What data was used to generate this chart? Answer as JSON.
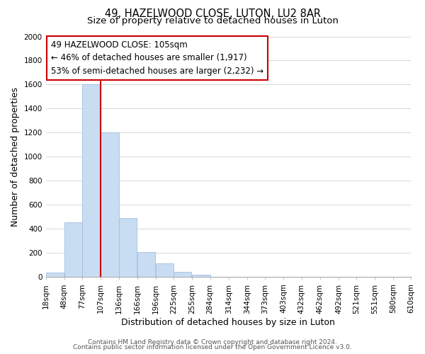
{
  "title": "49, HAZELWOOD CLOSE, LUTON, LU2 8AR",
  "subtitle": "Size of property relative to detached houses in Luton",
  "xlabel": "Distribution of detached houses by size in Luton",
  "ylabel": "Number of detached properties",
  "bar_left_edges": [
    18,
    48,
    77,
    107,
    136,
    166,
    196,
    225,
    255,
    284,
    314,
    344,
    373,
    403,
    432,
    462,
    492,
    521,
    551,
    580
  ],
  "bar_heights": [
    35,
    455,
    1600,
    1200,
    490,
    210,
    115,
    45,
    20,
    5,
    0,
    0,
    0,
    0,
    0,
    0,
    0,
    0,
    0,
    0
  ],
  "bin_width": 29,
  "bar_color": "#c9ddf2",
  "bar_edgecolor": "#a0bfdf",
  "x_tick_labels": [
    "18sqm",
    "48sqm",
    "77sqm",
    "107sqm",
    "136sqm",
    "166sqm",
    "196sqm",
    "225sqm",
    "255sqm",
    "284sqm",
    "314sqm",
    "344sqm",
    "373sqm",
    "403sqm",
    "432sqm",
    "462sqm",
    "492sqm",
    "521sqm",
    "551sqm",
    "580sqm",
    "610sqm"
  ],
  "ylim": [
    0,
    2000
  ],
  "yticks": [
    0,
    200,
    400,
    600,
    800,
    1000,
    1200,
    1400,
    1600,
    1800,
    2000
  ],
  "vline_x": 107,
  "vline_color": "#cc0000",
  "annotation_title": "49 HAZELWOOD CLOSE: 105sqm",
  "annotation_line1": "← 46% of detached houses are smaller (1,917)",
  "annotation_line2": "53% of semi-detached houses are larger (2,232) →",
  "footer_line1": "Contains HM Land Registry data © Crown copyright and database right 2024.",
  "footer_line2": "Contains public sector information licensed under the Open Government Licence v3.0.",
  "background_color": "#ffffff",
  "grid_color": "#d8d8d8",
  "title_fontsize": 10.5,
  "subtitle_fontsize": 9.5,
  "axis_label_fontsize": 9,
  "tick_fontsize": 7.5,
  "footer_fontsize": 6.5,
  "annotation_fontsize": 8.5
}
